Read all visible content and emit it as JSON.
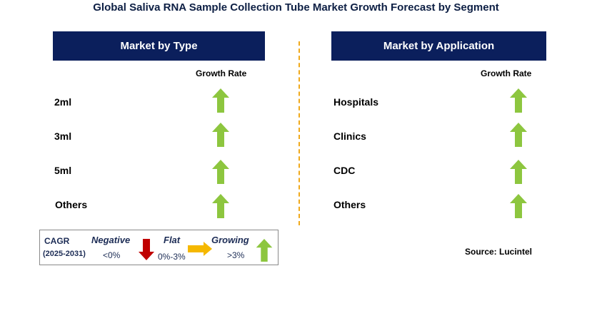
{
  "title": "Global Saliva RNA Sample Collection Tube Market Growth Forecast by Segment",
  "left_panel": {
    "header": "Market by Type",
    "growth_rate_label": "Growth Rate",
    "rows": [
      {
        "label": "2ml",
        "trend": "growing"
      },
      {
        "label": "3ml",
        "trend": "growing"
      },
      {
        "label": "5ml",
        "trend": "growing"
      },
      {
        "label": "Others",
        "trend": "growing"
      }
    ]
  },
  "right_panel": {
    "header": "Market by Application",
    "growth_rate_label": "Growth Rate",
    "rows": [
      {
        "label": "Hospitals",
        "trend": "growing"
      },
      {
        "label": "Clinics",
        "trend": "growing"
      },
      {
        "label": "CDC",
        "trend": "growing"
      },
      {
        "label": "Others",
        "trend": "growing"
      }
    ]
  },
  "legend": {
    "cagr": "CAGR",
    "period": "(2025-2031)",
    "negative_label": "Negative",
    "negative_range": "<0%",
    "flat_label": "Flat",
    "flat_range": "0%-3%",
    "growing_label": "Growing",
    "growing_range": ">3%"
  },
  "source": "Source: Lucintel",
  "colors": {
    "header_bg": "#0b1f5c",
    "growing_arrow": "#8dc63f",
    "negative_arrow": "#c00000",
    "flat_arrow": "#f5b800",
    "divider": "#f0a91b"
  }
}
